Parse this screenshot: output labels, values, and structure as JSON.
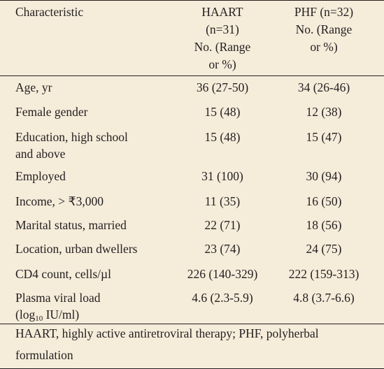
{
  "table": {
    "header": {
      "characteristic": "Characteristic",
      "haart": [
        "HAART",
        "(n=31)",
        "No. (Range",
        "or %)"
      ],
      "phf": [
        "PHF (n=32)",
        "No. (Range",
        "or %)"
      ]
    },
    "rows": [
      {
        "characteristic": [
          "Age, yr"
        ],
        "haart": "36 (27-50)",
        "phf": "34 (26-46)"
      },
      {
        "characteristic": [
          "Female gender"
        ],
        "haart": "15 (48)",
        "phf": "12 (38)"
      },
      {
        "characteristic": [
          "Education, high school",
          "and above"
        ],
        "haart": "15 (48)",
        "phf": "15 (47)"
      },
      {
        "characteristic": [
          "Employed"
        ],
        "haart": "31 (100)",
        "phf": "30 (94)"
      },
      {
        "characteristic": [
          "Income, > ₹3,000"
        ],
        "haart": "11 (35)",
        "phf": "16 (50)"
      },
      {
        "characteristic": [
          "Marital status, married"
        ],
        "haart": "22 (71)",
        "phf": "18 (56)"
      },
      {
        "characteristic": [
          "Location, urban dwellers"
        ],
        "haart": "23 (74)",
        "phf": "24 (75)"
      },
      {
        "characteristic": [
          "CD4 count, cells/µl"
        ],
        "haart": "226 (140-329)",
        "phf": "222 (159-313)"
      },
      {
        "characteristic": [
          "Plasma viral load"
        ],
        "unit": {
          "before": "(log",
          "sub": "10",
          "after": " IU/ml)"
        },
        "haart": "4.6 (2.3-5.9)",
        "phf": "4.8 (3.7-6.6)"
      }
    ],
    "footnote": [
      "HAART, highly active antiretroviral therapy; PHF, polyherbal",
      "formulation"
    ]
  }
}
